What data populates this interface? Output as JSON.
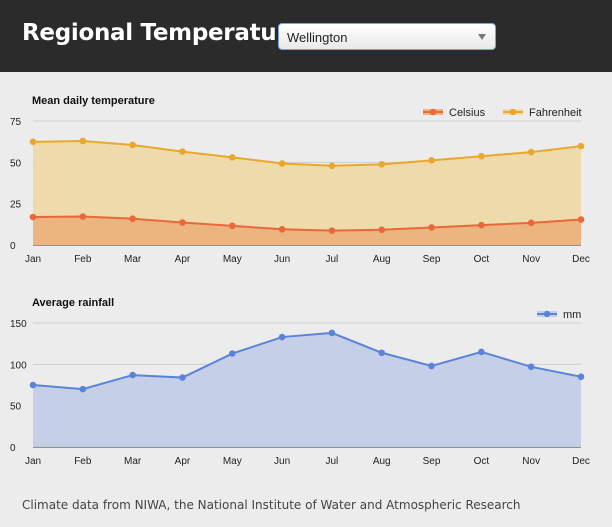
{
  "header": {
    "title": "Regional Temperatures",
    "location_select": {
      "selected": "Wellington"
    }
  },
  "chart_data": [
    {
      "type": "area",
      "title": "Mean daily temperature",
      "categories": [
        "Jan",
        "Feb",
        "Mar",
        "Apr",
        "May",
        "Jun",
        "Jul",
        "Aug",
        "Sep",
        "Oct",
        "Nov",
        "Dec"
      ],
      "y_ticks": [
        0,
        25,
        50,
        75
      ],
      "ylim": [
        0,
        75
      ],
      "grid": true,
      "legend_position": "top-right",
      "series": [
        {
          "name": "Celsius",
          "color": "#e8683a",
          "fill": "#ebb37d",
          "values": [
            16.9,
            17.2,
            15.9,
            13.6,
            11.6,
            9.5,
            8.7,
            9.2,
            10.6,
            12.0,
            13.4,
            15.4
          ]
        },
        {
          "name": "Fahrenheit",
          "color": "#e9a82c",
          "fill": "#eed9a8",
          "values": [
            62.4,
            62.9,
            60.5,
            56.5,
            53.0,
            49.3,
            47.9,
            48.8,
            51.2,
            53.7,
            56.2,
            59.8
          ]
        }
      ]
    },
    {
      "type": "area",
      "title": "Average rainfall",
      "categories": [
        "Jan",
        "Feb",
        "Mar",
        "Apr",
        "May",
        "Jun",
        "Jul",
        "Aug",
        "Sep",
        "Oct",
        "Nov",
        "Dec"
      ],
      "y_ticks": [
        0,
        50,
        100,
        150
      ],
      "ylim": [
        0,
        150
      ],
      "grid": true,
      "legend_position": "top-right",
      "series": [
        {
          "name": "mm",
          "color": "#5b84d9",
          "fill": "#c3cfe8",
          "values": [
            75,
            70,
            87,
            84,
            113,
            133,
            138,
            114,
            98,
            115,
            97,
            85
          ]
        }
      ]
    }
  ],
  "footer": {
    "note": "Climate data from NIWA, the National Institute of Water and Atmospheric Research"
  }
}
